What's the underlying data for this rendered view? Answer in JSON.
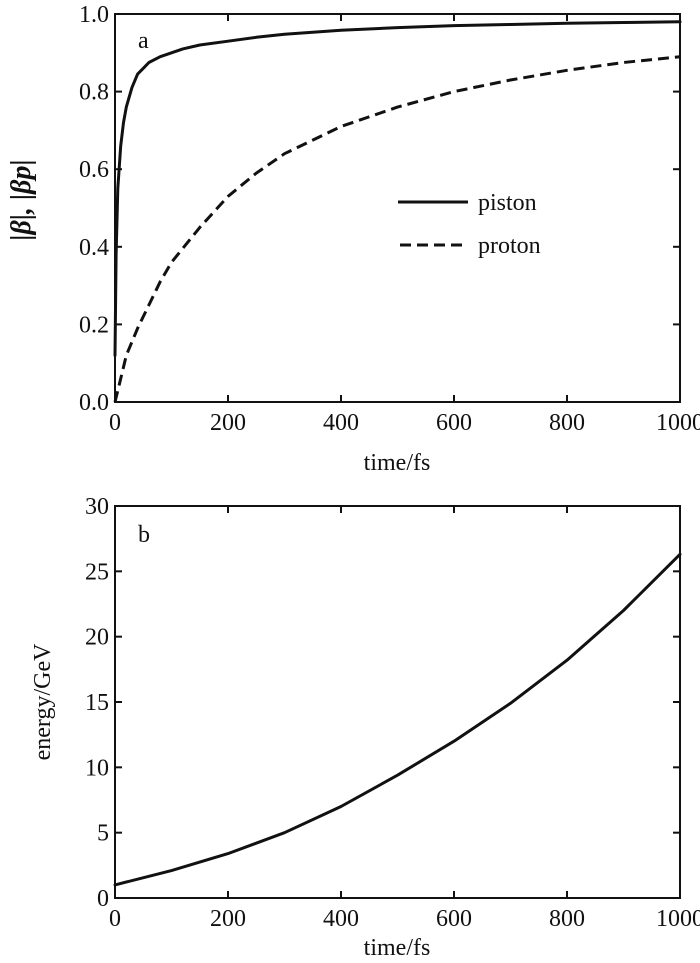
{
  "chart_data": [
    {
      "type": "line",
      "panel_label": "a",
      "xlabel": "time/fs",
      "ylabel": "|β|, |βp|",
      "xlim": [
        0,
        1000
      ],
      "ylim": [
        0,
        1.0
      ],
      "xticks": [
        "0",
        "200",
        "400",
        "600",
        "800",
        "1000"
      ],
      "yticks": [
        "0.0",
        "0.2",
        "0.4",
        "0.6",
        "0.8",
        "1.0"
      ],
      "grid": false,
      "legend_position": "center-right",
      "series": [
        {
          "name": "piston",
          "style": "solid",
          "x": [
            0,
            2,
            5,
            10,
            15,
            20,
            30,
            40,
            50,
            60,
            80,
            100,
            120,
            150,
            200,
            250,
            300,
            400,
            500,
            600,
            700,
            800,
            900,
            1000
          ],
          "y": [
            0.12,
            0.38,
            0.55,
            0.66,
            0.72,
            0.76,
            0.81,
            0.845,
            0.86,
            0.875,
            0.89,
            0.9,
            0.91,
            0.92,
            0.93,
            0.94,
            0.948,
            0.958,
            0.965,
            0.97,
            0.973,
            0.976,
            0.978,
            0.98
          ]
        },
        {
          "name": "proton",
          "style": "dashed",
          "x": [
            0,
            10,
            20,
            40,
            60,
            80,
            100,
            150,
            200,
            250,
            300,
            400,
            500,
            600,
            700,
            800,
            900,
            1000
          ],
          "y": [
            0.0,
            0.06,
            0.12,
            0.19,
            0.25,
            0.31,
            0.36,
            0.45,
            0.53,
            0.59,
            0.64,
            0.71,
            0.76,
            0.8,
            0.83,
            0.855,
            0.875,
            0.89
          ]
        }
      ]
    },
    {
      "type": "line",
      "panel_label": "b",
      "xlabel": "time/fs",
      "ylabel": "energy/GeV",
      "xlim": [
        0,
        1000
      ],
      "ylim": [
        0,
        30
      ],
      "xticks": [
        "0",
        "200",
        "400",
        "600",
        "800",
        "1000"
      ],
      "yticks": [
        "0",
        "5",
        "10",
        "15",
        "20",
        "25",
        "30"
      ],
      "grid": false,
      "series": [
        {
          "name": "",
          "style": "solid",
          "x": [
            0,
            100,
            200,
            300,
            400,
            500,
            600,
            700,
            800,
            900,
            1000
          ],
          "y": [
            1.0,
            2.1,
            3.4,
            5.0,
            7.0,
            9.4,
            12.0,
            14.9,
            18.2,
            22.0,
            26.3
          ]
        }
      ]
    }
  ]
}
